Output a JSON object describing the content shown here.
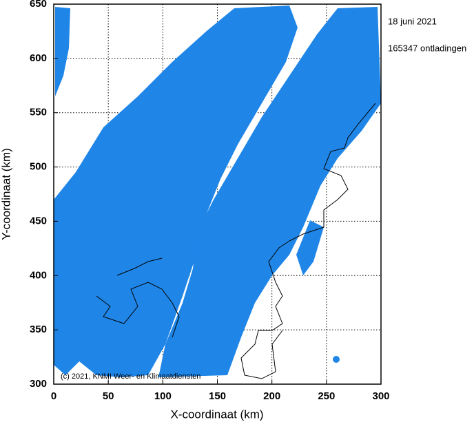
{
  "chart_data": {
    "type": "scatter",
    "date": "18 juni 2021",
    "count_label": "165347 ontladingen",
    "credit": "(c) 2021, KNMI Weer- en Klimaatdiensten",
    "x_label": "X-coordinaat (km)",
    "y_label": "Y-coordinaat (km)",
    "color": "#1f86e8",
    "xlim": [
      0,
      300
    ],
    "xticks": [
      0,
      50,
      100,
      150,
      200,
      250,
      300
    ],
    "ylim": [
      300,
      650
    ],
    "yticks": [
      300,
      350,
      400,
      450,
      500,
      550,
      600,
      650
    ],
    "grid": true
  }
}
